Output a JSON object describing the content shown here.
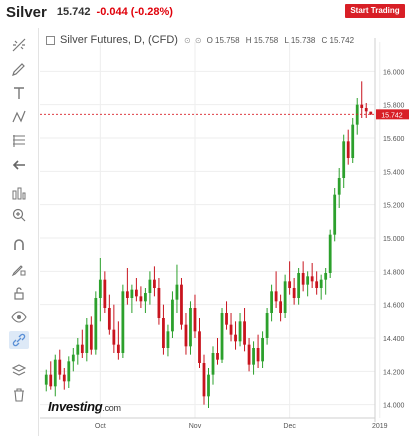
{
  "header": {
    "symbol": "Silver",
    "price": "15.742",
    "change": "-0.044 (-0.28%)",
    "cta_label": "Start Trading"
  },
  "legend": {
    "title": "Silver Futures, D, (CFD)",
    "controls": "⊙ ⊙",
    "open": "O 15.758",
    "high": "H 15.758",
    "low": "L 15.738",
    "close": "C 15.742"
  },
  "watermark": {
    "brand": "Investing",
    "domain": ".com"
  },
  "toolbar": {
    "icons": [
      "crosshair-icon",
      "pen-icon",
      "text-icon",
      "pattern-icon",
      "fib-icon",
      "back-arrow-icon",
      "measure-icon",
      "zoom-in-icon",
      "magnet-icon",
      "pencil-lock-icon",
      "unlock-icon",
      "eye-icon",
      "link-icon",
      "layers-icon",
      "trash-icon"
    ]
  },
  "colors": {
    "up": "#2ca02c",
    "down": "#c8141e",
    "price_line": "#d81f26",
    "grid": "#eeeeee",
    "accent": "#d81f26"
  },
  "chart_data": {
    "type": "candlestick",
    "title": "Silver Futures, D, (CFD)",
    "ylim": [
      13.92,
      16.14
    ],
    "y_ticks": [
      "16.000",
      "15.800",
      "15.600",
      "15.400",
      "15.200",
      "15.000",
      "14.800",
      "14.600",
      "14.400",
      "14.200",
      "14.000"
    ],
    "x_ticks": [
      "Oct",
      "Nov",
      "Dec",
      "2019"
    ],
    "x_tick_index": [
      12,
      33,
      54,
      74
    ],
    "last_price": 15.742,
    "last_price_label": "15.742",
    "candles": [
      [
        14.12,
        14.21,
        14.08,
        14.18
      ],
      [
        14.18,
        14.26,
        14.09,
        14.11
      ],
      [
        14.11,
        14.3,
        14.05,
        14.27
      ],
      [
        14.27,
        14.33,
        14.15,
        14.18
      ],
      [
        14.18,
        14.22,
        14.09,
        14.14
      ],
      [
        14.14,
        14.29,
        14.1,
        14.26
      ],
      [
        14.26,
        14.34,
        14.2,
        14.3
      ],
      [
        14.3,
        14.4,
        14.24,
        14.36
      ],
      [
        14.36,
        14.45,
        14.28,
        14.31
      ],
      [
        14.31,
        14.52,
        14.26,
        14.48
      ],
      [
        14.48,
        14.53,
        14.3,
        14.33
      ],
      [
        14.33,
        14.68,
        14.3,
        14.64
      ],
      [
        14.64,
        14.88,
        14.5,
        14.75
      ],
      [
        14.75,
        14.8,
        14.55,
        14.58
      ],
      [
        14.58,
        14.66,
        14.42,
        14.45
      ],
      [
        14.45,
        14.6,
        14.31,
        14.36
      ],
      [
        14.36,
        14.5,
        14.27,
        14.31
      ],
      [
        14.31,
        14.72,
        14.28,
        14.68
      ],
      [
        14.68,
        14.82,
        14.6,
        14.64
      ],
      [
        14.64,
        14.72,
        14.55,
        14.69
      ],
      [
        14.69,
        14.76,
        14.62,
        14.65
      ],
      [
        14.65,
        14.71,
        14.58,
        14.62
      ],
      [
        14.62,
        14.7,
        14.55,
        14.67
      ],
      [
        14.67,
        14.8,
        14.6,
        14.75
      ],
      [
        14.75,
        14.83,
        14.65,
        14.7
      ],
      [
        14.7,
        14.76,
        14.48,
        14.52
      ],
      [
        14.52,
        14.6,
        14.3,
        14.34
      ],
      [
        14.34,
        14.48,
        14.29,
        14.44
      ],
      [
        14.44,
        14.68,
        14.4,
        14.63
      ],
      [
        14.63,
        14.84,
        14.55,
        14.72
      ],
      [
        14.72,
        14.76,
        14.45,
        14.48
      ],
      [
        14.48,
        14.55,
        14.3,
        14.35
      ],
      [
        14.35,
        14.62,
        14.3,
        14.58
      ],
      [
        14.58,
        14.66,
        14.4,
        14.44
      ],
      [
        14.44,
        14.52,
        14.22,
        14.25
      ],
      [
        14.25,
        14.3,
        14.0,
        14.05
      ],
      [
        14.05,
        14.22,
        13.98,
        14.18
      ],
      [
        14.18,
        14.35,
        14.12,
        14.31
      ],
      [
        14.31,
        14.4,
        14.24,
        14.27
      ],
      [
        14.27,
        14.58,
        14.25,
        14.55
      ],
      [
        14.55,
        14.62,
        14.45,
        14.48
      ],
      [
        14.48,
        14.55,
        14.38,
        14.42
      ],
      [
        14.42,
        14.5,
        14.33,
        14.38
      ],
      [
        14.38,
        14.55,
        14.35,
        14.5
      ],
      [
        14.5,
        14.58,
        14.32,
        14.36
      ],
      [
        14.36,
        14.4,
        14.2,
        14.24
      ],
      [
        14.24,
        14.38,
        14.18,
        14.34
      ],
      [
        14.34,
        14.42,
        14.22,
        14.26
      ],
      [
        14.26,
        14.44,
        14.22,
        14.4
      ],
      [
        14.4,
        14.58,
        14.36,
        14.55
      ],
      [
        14.55,
        14.72,
        14.5,
        14.68
      ],
      [
        14.68,
        14.8,
        14.58,
        14.62
      ],
      [
        14.62,
        14.66,
        14.5,
        14.55
      ],
      [
        14.55,
        14.78,
        14.52,
        14.74
      ],
      [
        14.74,
        14.86,
        14.66,
        14.7
      ],
      [
        14.7,
        14.76,
        14.6,
        14.64
      ],
      [
        14.64,
        14.82,
        14.6,
        14.79
      ],
      [
        14.79,
        14.86,
        14.68,
        14.72
      ],
      [
        14.72,
        14.8,
        14.65,
        14.77
      ],
      [
        14.77,
        14.85,
        14.7,
        14.74
      ],
      [
        14.74,
        14.8,
        14.66,
        14.7
      ],
      [
        14.7,
        14.78,
        14.63,
        14.75
      ],
      [
        14.75,
        14.82,
        14.66,
        14.79
      ],
      [
        14.79,
        15.05,
        14.76,
        15.02
      ],
      [
        15.02,
        15.3,
        14.98,
        15.26
      ],
      [
        15.26,
        15.42,
        15.18,
        15.36
      ],
      [
        15.36,
        15.62,
        15.3,
        15.58
      ],
      [
        15.58,
        15.65,
        15.44,
        15.48
      ],
      [
        15.48,
        15.72,
        15.45,
        15.68
      ],
      [
        15.68,
        15.84,
        15.62,
        15.8
      ],
      [
        15.8,
        15.94,
        15.72,
        15.78
      ],
      [
        15.78,
        15.81,
        15.72,
        15.76
      ],
      [
        15.758,
        15.758,
        15.738,
        15.742
      ]
    ]
  }
}
